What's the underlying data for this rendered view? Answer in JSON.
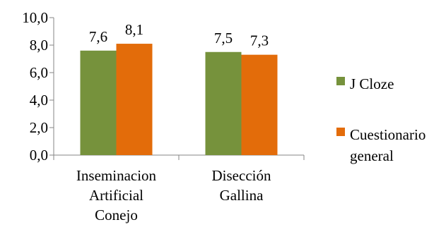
{
  "chart_data": {
    "type": "bar",
    "categories": [
      [
        "Inseminacion",
        "Artificial",
        "Conejo"
      ],
      [
        "Disección",
        "Gallina"
      ]
    ],
    "series": [
      {
        "name": "J Cloze",
        "color": "#76923C",
        "values": [
          7.6,
          7.5
        ],
        "labels": [
          "7,6",
          "7,5"
        ]
      },
      {
        "name": "Cuestionario general",
        "name_lines": [
          "Cuestionario",
          "general"
        ],
        "color": "#E36C0A",
        "values": [
          8.1,
          7.3
        ],
        "labels": [
          "8,1",
          "7,3"
        ]
      }
    ],
    "ylim": [
      0,
      10
    ],
    "yticks": [
      0,
      2,
      4,
      6,
      8,
      10
    ],
    "ytick_labels": [
      "0,0",
      "2,0",
      "4,0",
      "6,0",
      "8,0",
      "10,0"
    ],
    "grid": false,
    "legend_position": "right"
  }
}
